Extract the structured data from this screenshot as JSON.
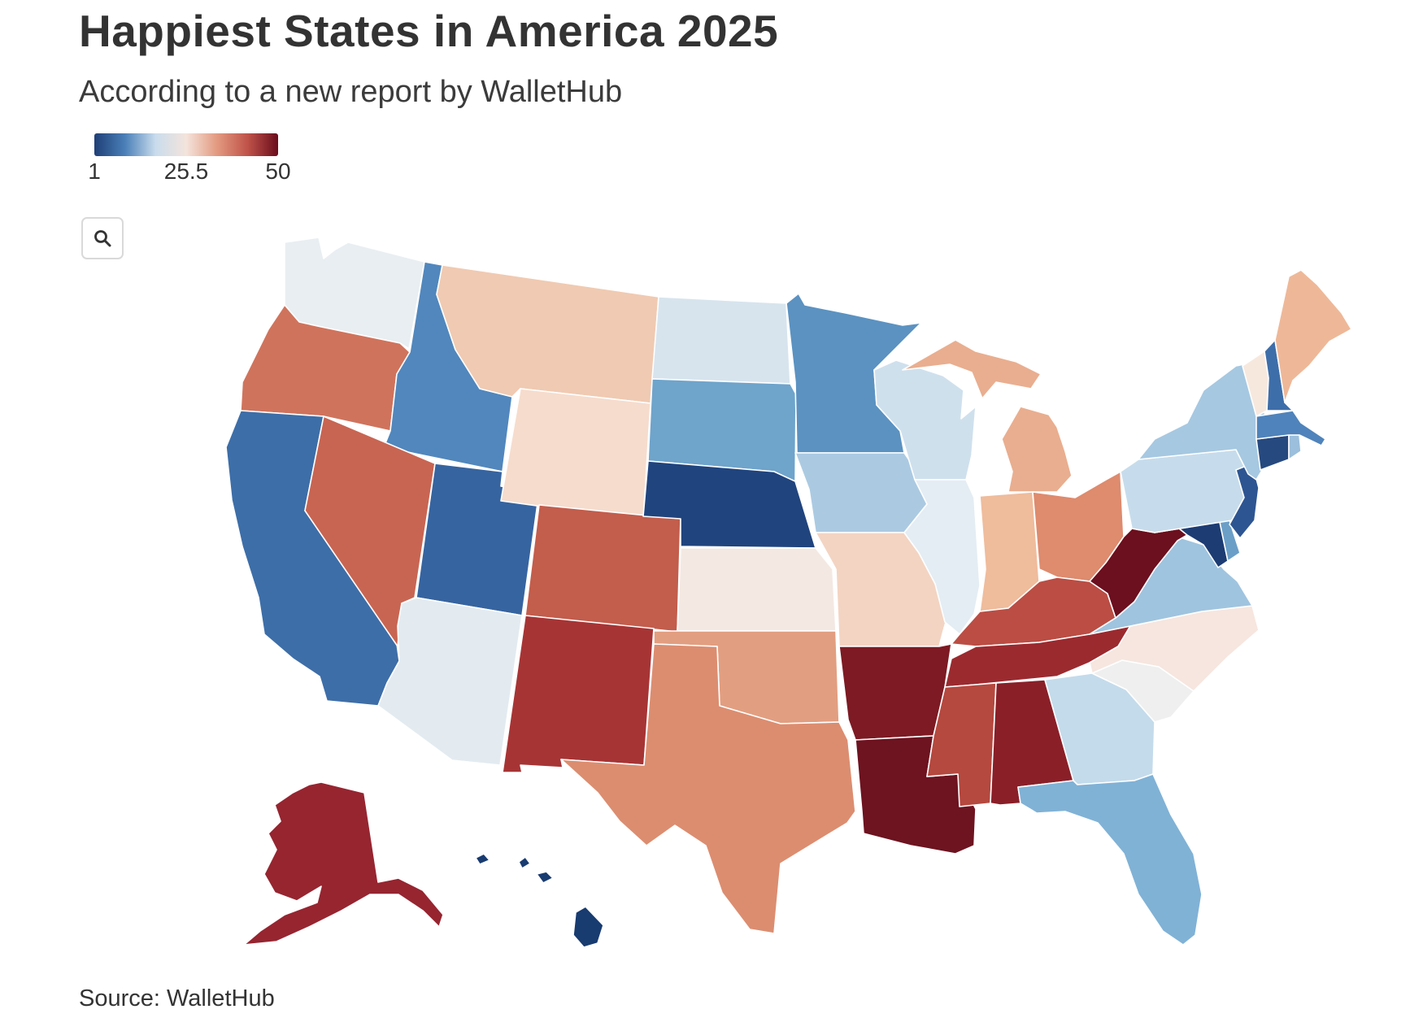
{
  "title": "Happiest States in America 2025",
  "subtitle": "According to a new report by WalletHub",
  "legend": {
    "min_label": "1",
    "mid_label": "25.5",
    "max_label": "50",
    "min": 1,
    "mid": 25.5,
    "max": 50,
    "colors": [
      "#1f3f77",
      "#4a7fb8",
      "#c9dcec",
      "#f4e4dc",
      "#e39a80",
      "#c0534a",
      "#6a0c1c"
    ]
  },
  "search_icon": "magnifier-icon",
  "source": "Source: WalletHub",
  "states": {
    "WA": "#e8eef2",
    "OR": "#d0735c",
    "CA": "#3d6ea8",
    "ID": "#5187bd",
    "NV": "#c86552",
    "UT": "#3664a0",
    "AZ": "#e3ebf1",
    "MT": "#f0cab2",
    "WY": "#f6dccd",
    "CO": "#c35d4c",
    "NM": "#a73435",
    "ND": "#d7e4ee",
    "SD": "#6fa4cb",
    "NE": "#20447e",
    "KS": "#f4e8e2",
    "OK": "#e29e80",
    "TX": "#dc8d70",
    "MN": "#5b92c1",
    "IA": "#abcae2",
    "MO": "#f3d4c2",
    "AR": "#7d1a23",
    "LA": "#6e1320",
    "WI": "#cfe0ed",
    "IL": "#e4edf3",
    "MI": "#e9ae8f",
    "IN": "#efbc9c",
    "OH": "#de8b6e",
    "KY": "#bb4d44",
    "TN": "#9b2a2f",
    "MS": "#b5483f",
    "AL": "#8a1f28",
    "GA": "#c4dbeb",
    "FL": "#80b2d6",
    "SC": "#efefef",
    "NC": "#f6e6df",
    "VA": "#9fc4df",
    "WV": "#6c0f1e",
    "MD": "#1c3c73",
    "DE": "#6b9fc8",
    "NJ": "#2d5591",
    "PA": "#c6dcec",
    "NY": "#a6c8e1",
    "CT": "#26497f",
    "RI": "#9bbfdc",
    "MA": "#4f83bb",
    "VT": "#f7e8de",
    "NH": "#3e6ea9",
    "ME": "#eeb898",
    "AK": "#962530",
    "HI": "#183b70"
  }
}
